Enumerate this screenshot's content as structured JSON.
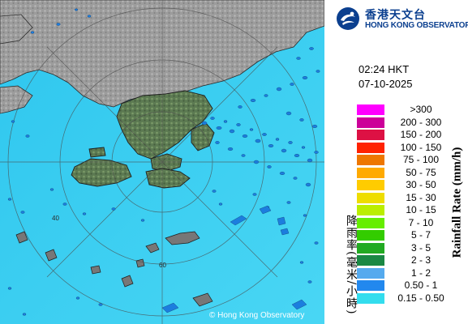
{
  "header": {
    "logo_cn": "香港天文台",
    "logo_en": "HONG KONG OBSERVATORY",
    "time": "02:24 HKT",
    "date": "07-10-2025"
  },
  "legend": {
    "title_en": "Rainfall Rate (mm/h)",
    "title_cn": "降雨率(毫米/小時)",
    "items": [
      {
        "label": ">300",
        "color": "#ff00ff"
      },
      {
        "label": "200 - 300",
        "color": "#cc0099"
      },
      {
        "label": "150 - 200",
        "color": "#dd1144"
      },
      {
        "label": "100 - 150",
        "color": "#ff2200"
      },
      {
        "label": "75 - 100",
        "color": "#ee7700"
      },
      {
        "label": "50 - 75",
        "color": "#ffaa00"
      },
      {
        "label": "30 - 50",
        "color": "#ffcc00"
      },
      {
        "label": "15 - 30",
        "color": "#eedd00"
      },
      {
        "label": "10 - 15",
        "color": "#bbee00"
      },
      {
        "label": "7 - 10",
        "color": "#66ee00"
      },
      {
        "label": "5 - 7",
        "color": "#33cc00"
      },
      {
        "label": "3 - 5",
        "color": "#22aa22"
      },
      {
        "label": "2 - 3",
        "color": "#1a8844"
      },
      {
        "label": "1 - 2",
        "color": "#55aaee"
      },
      {
        "label": "0.50 - 1",
        "color": "#2288ee"
      },
      {
        "label": "0.15 - 0.50",
        "color": "#33ddee"
      }
    ]
  },
  "map": {
    "range_ring_labels": [
      "40",
      "60"
    ],
    "copyright": "© Hong Kong Observatory"
  }
}
